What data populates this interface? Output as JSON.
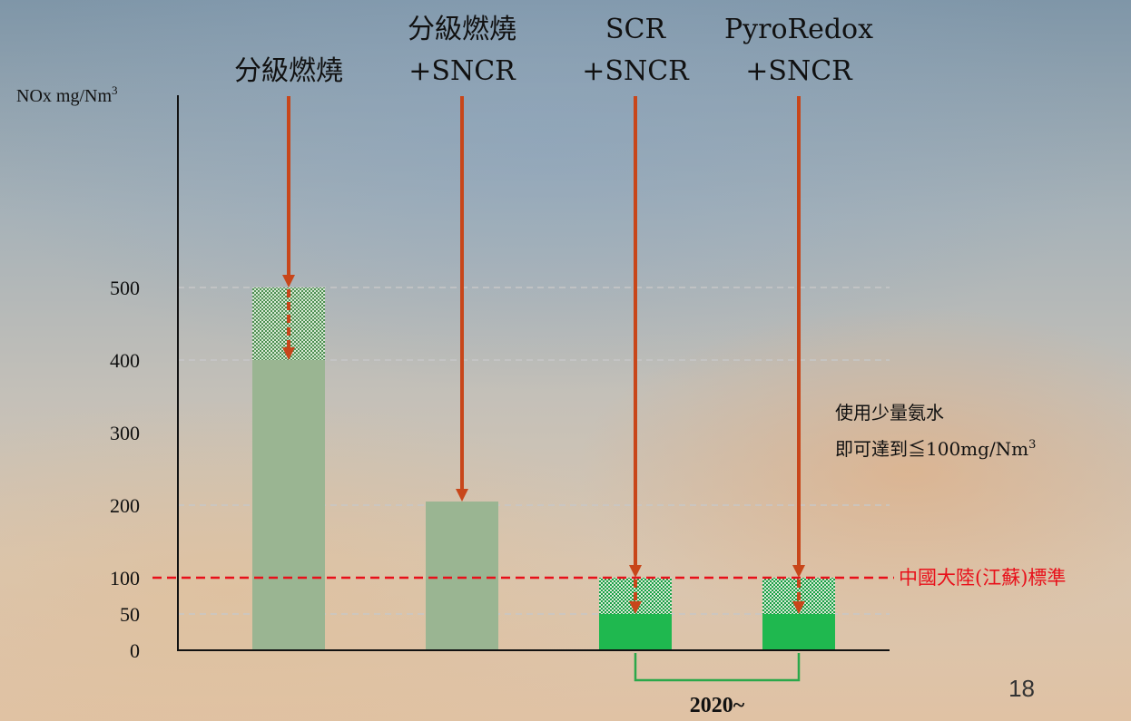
{
  "chart_data": {
    "type": "bar",
    "ylabel": "NOx mg/Nm",
    "ylabel_sup": "3",
    "ylim": [
      0,
      500
    ],
    "yticks": [
      0,
      50,
      100,
      200,
      300,
      400,
      500
    ],
    "gridlines": [
      50,
      200,
      400,
      500
    ],
    "categories": [
      {
        "lines": [
          "分級燃燒"
        ],
        "base": 400,
        "range_top": 500,
        "emphasis": false
      },
      {
        "lines": [
          "分級燃燒",
          "+SNCR"
        ],
        "base": 205,
        "range_top": null,
        "emphasis": false
      },
      {
        "lines": [
          "SCR",
          "+SNCR"
        ],
        "base": 50,
        "range_top": 100,
        "emphasis": true
      },
      {
        "lines": [
          "PyroRedox",
          "+SNCR"
        ],
        "base": 50,
        "range_top": 100,
        "emphasis": true
      }
    ],
    "standard": {
      "value": 100,
      "label": "中國大陸(江蘇)標準"
    },
    "annotation": {
      "line1": "使用少量氨水",
      "line2_prefix": "即可達到≦100mg/Nm",
      "line2_sup": "3"
    },
    "bracket_label": "2020~",
    "colors": {
      "bar": "#9ab592",
      "bar_emphasis": "#1fb84f",
      "arrow": "#c8461a",
      "standard_line": "#e8101a",
      "hatch_bg": "#d9ead6",
      "hatch_fg": "#4e8f52",
      "hatch_fg_emphasis": "#1aa046",
      "bracket": "#2aa84a"
    }
  },
  "page_number": "18"
}
